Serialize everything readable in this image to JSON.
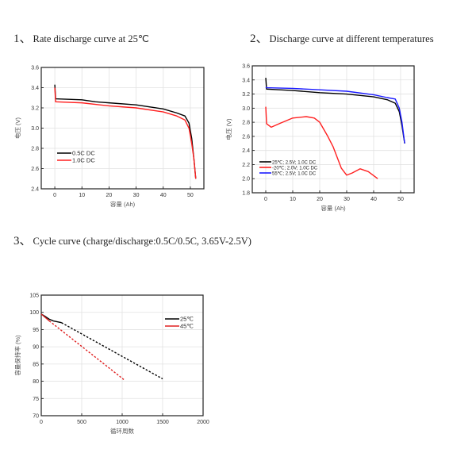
{
  "sections": [
    {
      "number": "1、",
      "title": "Rate discharge curve at 25℃"
    },
    {
      "number": "2、",
      "title": "Discharge curve at different temperatures"
    },
    {
      "number": "3、",
      "title": "Cycle curve (charge/discharge:0.5C/0.5C, 3.65V-2.5V)"
    }
  ],
  "chart_data": [
    {
      "type": "line",
      "xlabel": "容量 (Ah)",
      "ylabel": "电压 (V)",
      "xlim": [
        -5,
        55
      ],
      "ylim": [
        2.4,
        3.6
      ],
      "xticks": [
        0,
        10,
        20,
        30,
        40,
        50
      ],
      "yticks": [
        2.4,
        2.6,
        2.8,
        3.0,
        3.2,
        3.4,
        3.6
      ],
      "grid": true,
      "legend": "bottom-left",
      "series": [
        {
          "name": "0.5C DC",
          "color": "#000000",
          "style": "solid",
          "x": [
            0,
            0.3,
            10,
            15,
            20,
            30,
            40,
            45,
            48,
            49.5,
            50.5,
            51.3,
            52
          ],
          "y": [
            3.43,
            3.29,
            3.28,
            3.26,
            3.25,
            3.23,
            3.19,
            3.15,
            3.12,
            3.05,
            2.9,
            2.7,
            2.5
          ]
        },
        {
          "name": "1.0C DC",
          "color": "#ff2020",
          "style": "solid",
          "x": [
            0,
            0.3,
            10,
            20,
            30,
            40,
            45,
            48,
            49.5,
            50.5,
            51.3,
            52
          ],
          "y": [
            3.4,
            3.26,
            3.25,
            3.22,
            3.2,
            3.16,
            3.12,
            3.08,
            3.0,
            2.85,
            2.7,
            2.5
          ]
        }
      ]
    },
    {
      "type": "line",
      "xlabel": "容量 (Ah)",
      "ylabel": "电压 (V)",
      "xlim": [
        -5,
        55
      ],
      "ylim": [
        1.8,
        3.6
      ],
      "xticks": [
        0,
        10,
        20,
        30,
        40,
        50
      ],
      "yticks": [
        1.8,
        2.0,
        2.2,
        2.4,
        2.6,
        2.8,
        3.0,
        3.2,
        3.4,
        3.6
      ],
      "grid": true,
      "legend": "bottom-left",
      "series": [
        {
          "name": "25℃; 2.5V; 1.0C DC",
          "color": "#000000",
          "style": "solid",
          "x": [
            0,
            0.3,
            10,
            20,
            30,
            40,
            45,
            48,
            49.5,
            50.5,
            51.5
          ],
          "y": [
            3.43,
            3.27,
            3.25,
            3.22,
            3.2,
            3.16,
            3.12,
            3.07,
            2.95,
            2.75,
            2.5
          ]
        },
        {
          "name": "-20℃; 2.0V; 1.0C DC",
          "color": "#ff2020",
          "style": "solid",
          "x": [
            0,
            0.3,
            2,
            5,
            10,
            15,
            18,
            20,
            23,
            25,
            28,
            30,
            32,
            35,
            38,
            41.5
          ],
          "y": [
            3.02,
            2.78,
            2.73,
            2.78,
            2.86,
            2.88,
            2.86,
            2.8,
            2.6,
            2.45,
            2.15,
            2.05,
            2.08,
            2.14,
            2.1,
            2.0
          ]
        },
        {
          "name": "55℃; 2.5V; 1.0C DC",
          "color": "#1a1aff",
          "style": "solid",
          "x": [
            0,
            0.3,
            10,
            20,
            30,
            40,
            45,
            48,
            49.5,
            50.5,
            51.5
          ],
          "y": [
            3.3,
            3.29,
            3.28,
            3.26,
            3.24,
            3.19,
            3.15,
            3.13,
            3.0,
            2.8,
            2.5
          ]
        }
      ]
    },
    {
      "type": "line",
      "xlabel": "循环周数",
      "ylabel": "容量保持率 (%)",
      "xlim": [
        0,
        2000
      ],
      "ylim": [
        70,
        105
      ],
      "xticks": [
        0,
        500,
        1000,
        1500,
        2000
      ],
      "yticks": [
        70,
        75,
        80,
        85,
        90,
        95,
        100,
        105
      ],
      "grid": true,
      "legend": "top-right",
      "series": [
        {
          "name": "25℃",
          "color": "#000000",
          "style": "solid+dashed",
          "x": [
            0,
            50,
            100,
            150,
            250,
            1500
          ],
          "y": [
            99.5,
            98.8,
            98.0,
            97.5,
            97.0,
            80.7
          ],
          "solid_until": 250
        },
        {
          "name": "45℃",
          "color": "#e02020",
          "style": "solid+dashed",
          "x": [
            0,
            50,
            100,
            1020
          ],
          "y": [
            99.5,
            98.5,
            97.5,
            80.5
          ],
          "solid_until": 100
        }
      ]
    }
  ]
}
